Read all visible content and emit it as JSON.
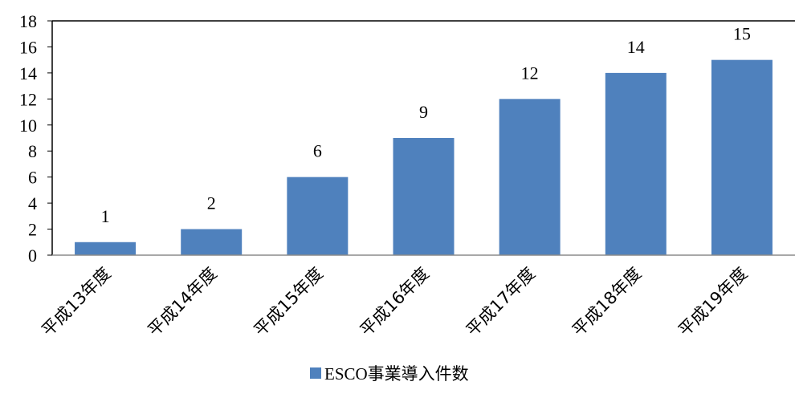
{
  "chart_data": {
    "type": "bar",
    "categories": [
      "平成13年度",
      "平成14年度",
      "平成15年度",
      "平成16年度",
      "平成17年度",
      "平成18年度",
      "平成19年度"
    ],
    "series": [
      {
        "name": "ESCO事業導入件数",
        "values": [
          1,
          2,
          6,
          9,
          12,
          14,
          15
        ]
      }
    ],
    "data_labels": [
      "1",
      "2",
      "6",
      "9",
      "12",
      "14",
      "15"
    ],
    "ylim": [
      0,
      18
    ],
    "yticks": [
      0,
      2,
      4,
      6,
      8,
      10,
      12,
      14,
      16,
      18
    ],
    "grid": false,
    "legend_position": "bottom",
    "bar_color": "#4f81bd",
    "axis_color": "#000000"
  }
}
